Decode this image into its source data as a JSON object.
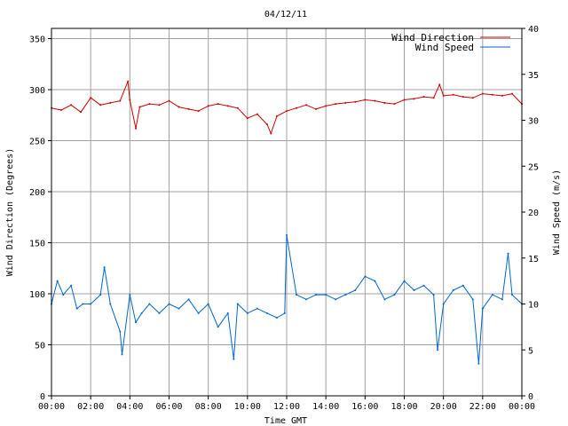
{
  "chart_data": {
    "type": "line",
    "title": "04/12/11",
    "xlabel": "Time GMT",
    "ylabel_left": "Wind Direction (Degrees)",
    "ylabel_right": "Wind Speed (m/s)",
    "x_ticks": [
      "00:00",
      "02:00",
      "04:00",
      "06:00",
      "08:00",
      "10:00",
      "12:00",
      "14:00",
      "16:00",
      "18:00",
      "20:00",
      "22:00",
      "00:00"
    ],
    "y_left_ticks": [
      "0",
      "50",
      "100",
      "150",
      "200",
      "250",
      "300",
      "350"
    ],
    "y_right_ticks": [
      "0",
      "5",
      "10",
      "15",
      "20",
      "25",
      "30",
      "35",
      "40"
    ],
    "ylim_left": [
      0,
      360
    ],
    "ylim_right": [
      0,
      40
    ],
    "x_range_hours": [
      0,
      24
    ],
    "grid": true,
    "legend_position": "top-right",
    "series": [
      {
        "name": "Wind Direction",
        "axis": "left",
        "color": "#cc0000",
        "x_hours": [
          0,
          0.5,
          1,
          1.5,
          2,
          2.5,
          3,
          3.5,
          3.9,
          4,
          4.3,
          4.5,
          5,
          5.5,
          6,
          6.5,
          7,
          7.5,
          8,
          8.5,
          9,
          9.5,
          10,
          10.5,
          11,
          11.2,
          11.5,
          12,
          12.5,
          13,
          13.5,
          14,
          14.5,
          15,
          15.5,
          16,
          16.5,
          17,
          17.5,
          18,
          18.5,
          19,
          19.5,
          19.8,
          20,
          20.5,
          21,
          21.5,
          22,
          22.5,
          23,
          23.5,
          24
        ],
        "values": [
          282,
          280,
          285,
          278,
          292,
          285,
          287,
          289,
          308,
          290,
          262,
          283,
          286,
          285,
          289,
          283,
          281,
          279,
          284,
          286,
          284,
          282,
          272,
          276,
          266,
          257,
          274,
          279,
          282,
          285,
          281,
          284,
          286,
          287,
          288,
          290,
          289,
          287,
          286,
          290,
          291,
          293,
          292,
          305,
          294,
          295,
          293,
          292,
          296,
          295,
          294,
          296,
          286
        ]
      },
      {
        "name": "Wind Speed",
        "axis": "right",
        "color": "#0066cc",
        "x_hours": [
          0,
          0.3,
          0.6,
          1,
          1.3,
          1.6,
          2,
          2.5,
          2.7,
          3,
          3.5,
          3.6,
          4,
          4.3,
          4.6,
          5,
          5.5,
          6,
          6.5,
          7,
          7.5,
          8,
          8.5,
          9,
          9.3,
          9.5,
          10,
          10.5,
          11,
          11.5,
          11.9,
          12,
          12.5,
          13,
          13.5,
          14,
          14.5,
          15,
          15.5,
          16,
          16.5,
          17,
          17.5,
          18,
          18.5,
          19,
          19.5,
          19.7,
          20,
          20.5,
          21,
          21.5,
          21.8,
          22,
          22.5,
          23,
          23.3,
          23.5,
          24
        ],
        "values": [
          10,
          12.5,
          11,
          12,
          9.5,
          10,
          10,
          11,
          14,
          10,
          7,
          4.5,
          11,
          8,
          9,
          10,
          9,
          10,
          9.5,
          10.5,
          9,
          10,
          7.5,
          9,
          4,
          10,
          9,
          9.5,
          9,
          8.5,
          9,
          17.5,
          11,
          10.5,
          11,
          11,
          10.5,
          11,
          11.5,
          13,
          12.5,
          10.5,
          11,
          12.5,
          11.5,
          12,
          11,
          5,
          10,
          11.5,
          12,
          10.5,
          3.5,
          9.5,
          11,
          10.5,
          15.5,
          11,
          10
        ]
      }
    ]
  }
}
